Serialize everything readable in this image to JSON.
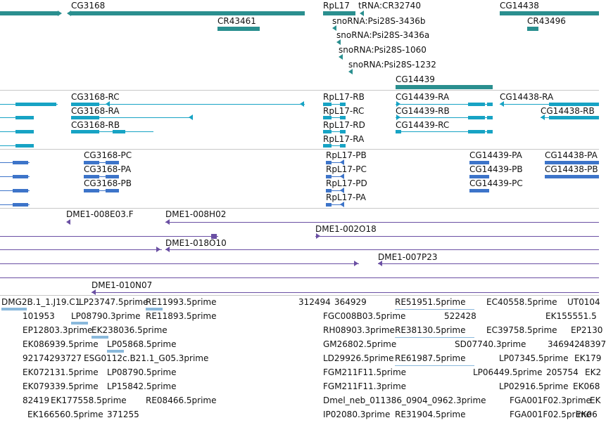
{
  "colors": {
    "gene": "#2a8f8f",
    "transcript": "#17a3c4",
    "protein": "#3d74c9",
    "clone": "#6a4fa3",
    "est": "#8ab9dc",
    "separator": "#c8c8c8"
  },
  "tracks": {
    "genes": {
      "labels": [
        "CG3168",
        "CR43461",
        "RpL17",
        "tRNA:CR32740",
        "CG14438",
        "CR43496",
        "snoRNA:Psi28S-3436b",
        "snoRNA:Psi28S-3436a",
        "snoRNA:Psi28S-1060",
        "snoRNA:Psi28S-1232",
        "CG14439"
      ]
    },
    "transcripts": {
      "labels": [
        "CG3168-RC",
        "CG3168-RA",
        "CG3168-RB",
        "RpL17-RB",
        "RpL17-RC",
        "RpL17-RD",
        "RpL17-RA",
        "CG14439-RA",
        "CG14439-RB",
        "CG14439-RC",
        "CG14438-RA",
        "CG14438-RB"
      ]
    },
    "proteins": {
      "labels": [
        "CG3168-PC",
        "CG3168-PA",
        "CG3168-PB",
        "RpL17-PB",
        "RpL17-PC",
        "RpL17-PD",
        "RpL17-PA",
        "CG14439-PA",
        "CG14439-PB",
        "CG14439-PC",
        "CG14438-PA",
        "CG14438-PB"
      ]
    },
    "clones": {
      "labels": [
        "DME1-008E03.F",
        "DME1-008H02",
        "DME1-002O18",
        "DME1-018O10",
        "DME1-007P23",
        "DME1-010N07"
      ]
    },
    "ests": {
      "labels": [
        "DMG2B.1_1.J19.C1",
        "LP23747.5prime",
        "RE11993.5prime",
        "312494",
        "364929",
        "RE51951.5prime",
        "EC40558.5prime",
        "UT0104",
        "101953",
        "LP08790.3prime",
        "RE11893.5prime",
        "FGC008B03.5prime",
        "522428",
        "EK155551.5",
        "EP12803.3prime",
        "EK238036.5prime",
        "RH08903.3prime",
        "RE38130.5prime",
        "EC39758.5prime",
        "EP2130",
        "EK086939.5prime",
        "LP05868.5prime",
        "GM26802.5prime",
        "SD07740.3prime",
        "346942",
        "48397",
        "92174293727",
        "ESG0112c.B21.1_G05.3prime",
        "LD29926.5prime",
        "RE61987.5prime",
        "LP07345.5prime",
        "EK179",
        "EK072131.5prime",
        "LP08790.5prime",
        "FGM211F11.5prime",
        "LP06449.5prime",
        "205754",
        "EK2",
        "EK079339.5prime",
        "LP15842.5prime",
        "FGM211F11.3prime",
        "LP02916.5prime",
        "EK068",
        "82419",
        "EK177558.5prime",
        "RE08466.5prime",
        "Dmel_neb_011386_0904_0962.3prime",
        "FGA001F02.3prime",
        "EK",
        "EK166560.5prime",
        "371255",
        "IP02080.3prime",
        "RE31904.5prime",
        "FGA001F02.5prime",
        "EK06"
      ]
    }
  }
}
